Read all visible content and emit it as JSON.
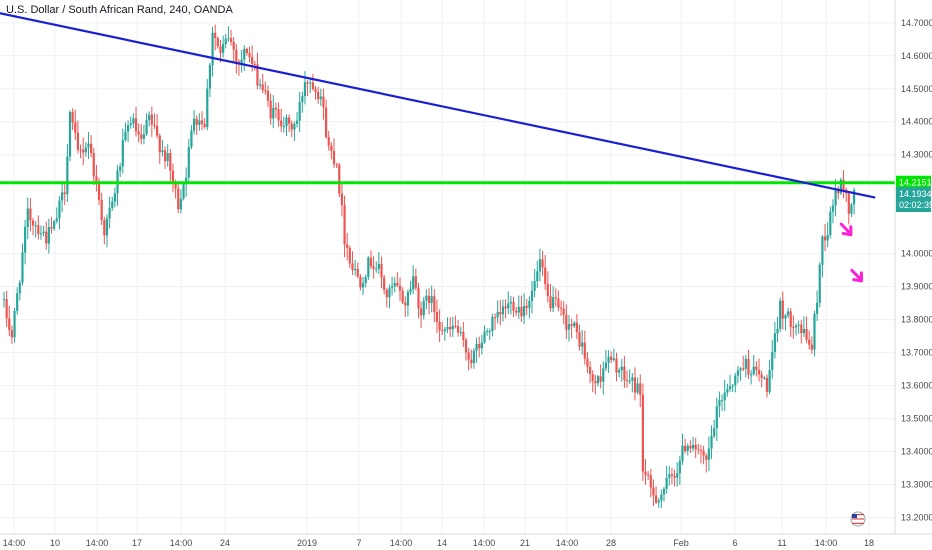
{
  "title": "U.S. Dollar / South African Rand, 240, OANDA",
  "colors": {
    "up": "#26a69a",
    "down": "#ef5350",
    "trendline": "#1a1fd1",
    "support": "#00e600",
    "arrow": "#ff1fd6",
    "grid": "#eef0f3",
    "axis_text": "#4a4a4a",
    "price_tag": "#26a69a"
  },
  "chart_data": {
    "type": "candlestick",
    "title": "U.S. Dollar / South African Rand, 240, OANDA",
    "xlabel": "",
    "ylabel": "",
    "ylim": [
      13.15,
      14.76
    ],
    "grid": true,
    "y_ticks": [
      "14.70000",
      "14.60000",
      "14.50000",
      "14.40000",
      "14.30000",
      "14.00000",
      "13.90000",
      "13.80000",
      "13.70000",
      "13.60000",
      "13.50000",
      "13.40000",
      "13.30000",
      "13.20000"
    ],
    "x_ticks": [
      "14:00",
      "10",
      "14:00",
      "17",
      "14:00",
      "24",
      "2019",
      "7",
      "14:00",
      "14",
      "14:00",
      "21",
      "14:00",
      "28",
      "Feb",
      "6",
      "11",
      "14:00",
      "18"
    ],
    "current_price": "14.19349",
    "countdown": "02:02:35",
    "last_close": 14.193,
    "support_level": 14.215,
    "support_label": "14.21510",
    "trendline": {
      "from": {
        "bar": -24,
        "price": 14.767
      },
      "to": {
        "bar": 330,
        "price": 14.17
      }
    },
    "sell_arrows": [
      {
        "bar": 319,
        "price": 14.07
      },
      {
        "bar": 323,
        "price": 13.93
      }
    ],
    "anchors": [
      [
        0,
        13.84
      ],
      [
        3,
        13.75
      ],
      [
        9,
        14.12
      ],
      [
        13,
        14.08
      ],
      [
        16,
        14.05
      ],
      [
        19,
        14.08
      ],
      [
        23,
        14.2
      ],
      [
        25,
        14.43
      ],
      [
        28,
        14.3
      ],
      [
        32,
        14.34
      ],
      [
        35,
        14.21
      ],
      [
        38,
        14.07
      ],
      [
        41,
        14.15
      ],
      [
        45,
        14.32
      ],
      [
        48,
        14.41
      ],
      [
        52,
        14.33
      ],
      [
        55,
        14.41
      ],
      [
        58,
        14.35
      ],
      [
        62,
        14.28
      ],
      [
        66,
        14.15
      ],
      [
        69,
        14.25
      ],
      [
        72,
        14.42
      ],
      [
        76,
        14.4
      ],
      [
        79,
        14.68
      ],
      [
        82,
        14.6
      ],
      [
        85,
        14.66
      ],
      [
        89,
        14.58
      ],
      [
        92,
        14.62
      ],
      [
        95,
        14.55
      ],
      [
        98,
        14.5
      ],
      [
        101,
        14.43
      ],
      [
        104,
        14.42
      ],
      [
        108,
        14.38
      ],
      [
        111,
        14.4
      ],
      [
        114,
        14.53
      ],
      [
        117,
        14.52
      ],
      [
        120,
        14.48
      ],
      [
        123,
        14.32
      ],
      [
        126,
        14.28
      ],
      [
        129,
        14.05
      ],
      [
        132,
        13.96
      ],
      [
        135,
        13.92
      ],
      [
        139,
        13.98
      ],
      [
        142,
        13.95
      ],
      [
        145,
        13.87
      ],
      [
        148,
        13.9
      ],
      [
        152,
        13.85
      ],
      [
        155,
        13.93
      ],
      [
        158,
        13.82
      ],
      [
        161,
        13.87
      ],
      [
        165,
        13.79
      ],
      [
        168,
        13.76
      ],
      [
        171,
        13.78
      ],
      [
        174,
        13.72
      ],
      [
        177,
        13.68
      ],
      [
        180,
        13.72
      ],
      [
        184,
        13.78
      ],
      [
        187,
        13.8
      ],
      [
        190,
        13.84
      ],
      [
        193,
        13.85
      ],
      [
        196,
        13.83
      ],
      [
        200,
        13.88
      ],
      [
        203,
        13.97
      ],
      [
        206,
        13.86
      ],
      [
        209,
        13.84
      ],
      [
        212,
        13.8
      ],
      [
        216,
        13.77
      ],
      [
        219,
        13.72
      ],
      [
        222,
        13.62
      ],
      [
        225,
        13.61
      ],
      [
        228,
        13.68
      ],
      [
        232,
        13.66
      ],
      [
        235,
        13.62
      ],
      [
        238,
        13.61
      ],
      [
        241,
        13.58
      ],
      [
        242,
        13.35
      ],
      [
        245,
        13.28
      ],
      [
        248,
        13.26
      ],
      [
        251,
        13.3
      ],
      [
        255,
        13.35
      ],
      [
        258,
        13.42
      ],
      [
        261,
        13.43
      ],
      [
        264,
        13.38
      ],
      [
        266,
        13.36
      ],
      [
        268,
        13.44
      ],
      [
        271,
        13.55
      ],
      [
        274,
        13.6
      ],
      [
        277,
        13.62
      ],
      [
        280,
        13.67
      ],
      [
        283,
        13.65
      ],
      [
        286,
        13.63
      ],
      [
        289,
        13.6
      ],
      [
        291,
        13.68
      ],
      [
        294,
        13.84
      ],
      [
        297,
        13.8
      ],
      [
        300,
        13.8
      ],
      [
        303,
        13.75
      ],
      [
        306,
        13.72
      ],
      [
        308,
        13.87
      ],
      [
        310,
        14.05
      ],
      [
        312,
        14.07
      ],
      [
        315,
        14.19
      ],
      [
        318,
        14.21
      ],
      [
        320,
        14.13
      ],
      [
        322,
        14.19
      ]
    ]
  }
}
